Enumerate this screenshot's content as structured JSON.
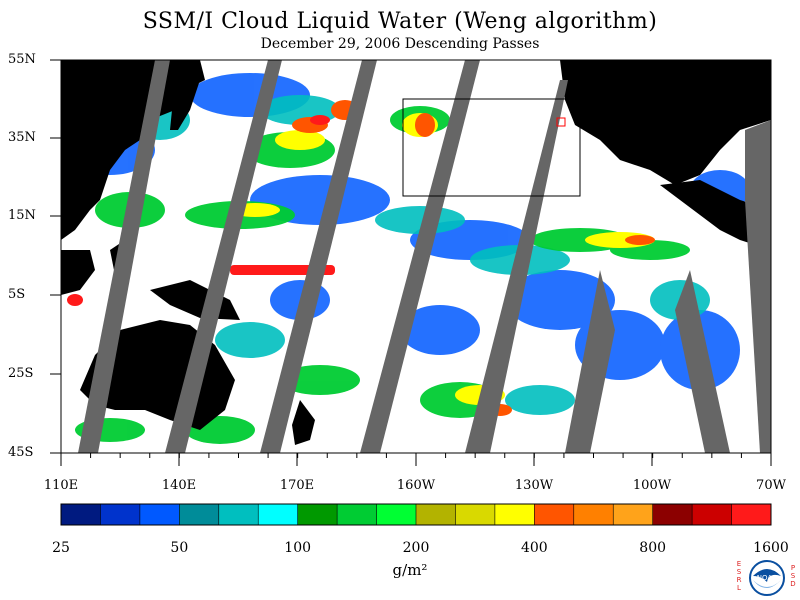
{
  "title": "SSM/I Cloud Liquid Water (Weng algorithm)",
  "subtitle": "December 29, 2006   Descending Passes",
  "lat_labels": [
    "55N",
    "35N",
    "15N",
    "5S",
    "25S",
    "45S"
  ],
  "lon_labels": [
    "110E",
    "140E",
    "170E",
    "160W",
    "130W",
    "100W",
    "70W"
  ],
  "colorbar": {
    "colors": [
      "#001a80",
      "#0033cc",
      "#0059ff",
      "#008c99",
      "#00bfbf",
      "#00ffff",
      "#009900",
      "#00cc33",
      "#00ff33",
      "#b3b300",
      "#d9d900",
      "#ffff00",
      "#ff5500",
      "#ff8000",
      "#ffa31a",
      "#8c0000",
      "#cc0000",
      "#ff1a1a"
    ],
    "tick_labels": [
      "25",
      "50",
      "100",
      "200",
      "400",
      "800",
      "1600"
    ],
    "units": "g/m²"
  },
  "logo": {
    "left_text": "ESRL",
    "right_text": "PSD",
    "emblem_text": "NOAA"
  }
}
